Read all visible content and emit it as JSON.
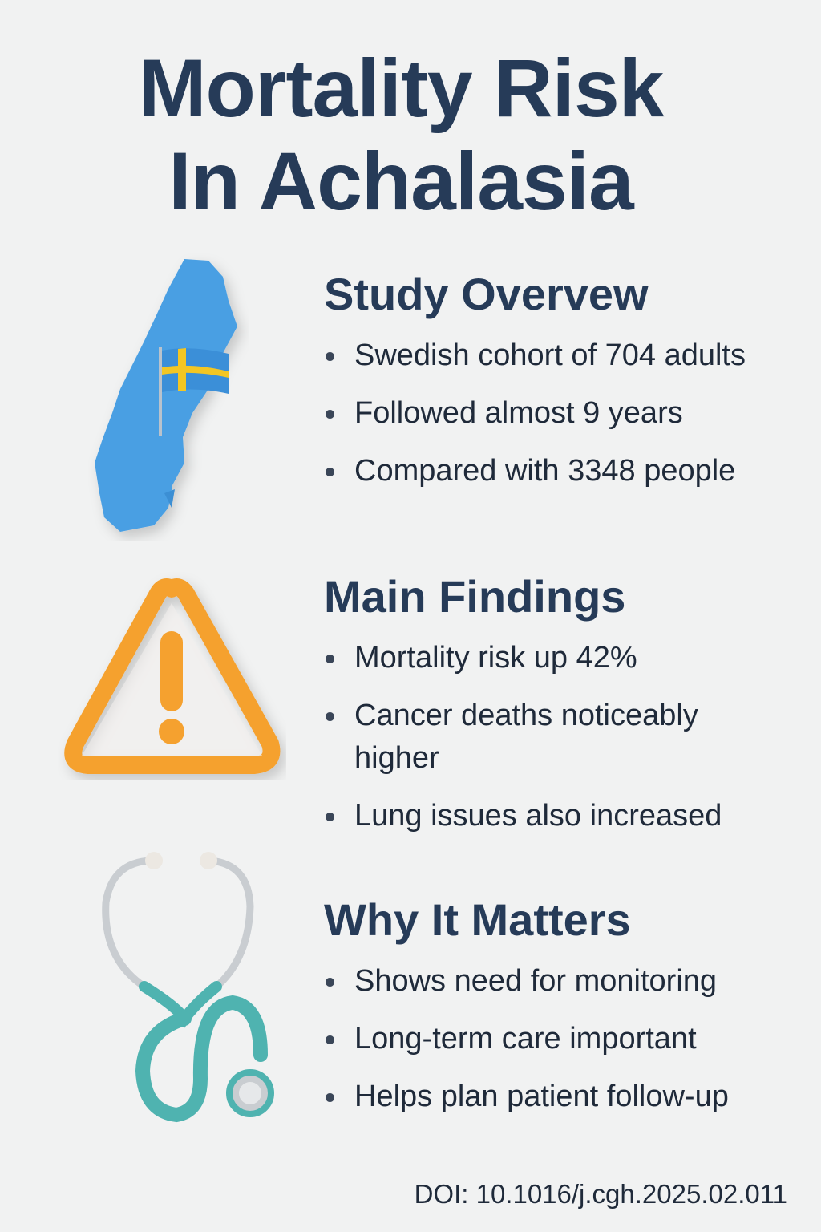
{
  "title": {
    "line1": "Mortality Risk",
    "line2": "In Achalasia"
  },
  "sections": [
    {
      "heading": "Study Overvew",
      "icon": "sweden-map-flag-icon",
      "bullets": [
        "Swedish cohort of 704 adults",
        "Followed almost 9 years",
        "Compared with 3348 people"
      ]
    },
    {
      "heading": "Main Findings",
      "icon": "warning-triangle-icon",
      "bullets": [
        "Mortality risk up 42%",
        "Cancer deaths noticeably higher",
        "Lung issues also increased"
      ]
    },
    {
      "heading": "Why It Matters",
      "icon": "stethoscope-icon",
      "bullets": [
        "Shows need for monitoring",
        "Long-term care important",
        "Helps plan patient follow-up"
      ]
    }
  ],
  "doi": "DOI: 10.1016/j.cgh.2025.02.011",
  "colors": {
    "heading": "#263b58",
    "map": "#4a9fe3",
    "warning": "#f5a12f",
    "stethoscope": "#4fb3b0",
    "flag_blue": "#3b8fd8",
    "flag_yellow": "#f3c623"
  }
}
